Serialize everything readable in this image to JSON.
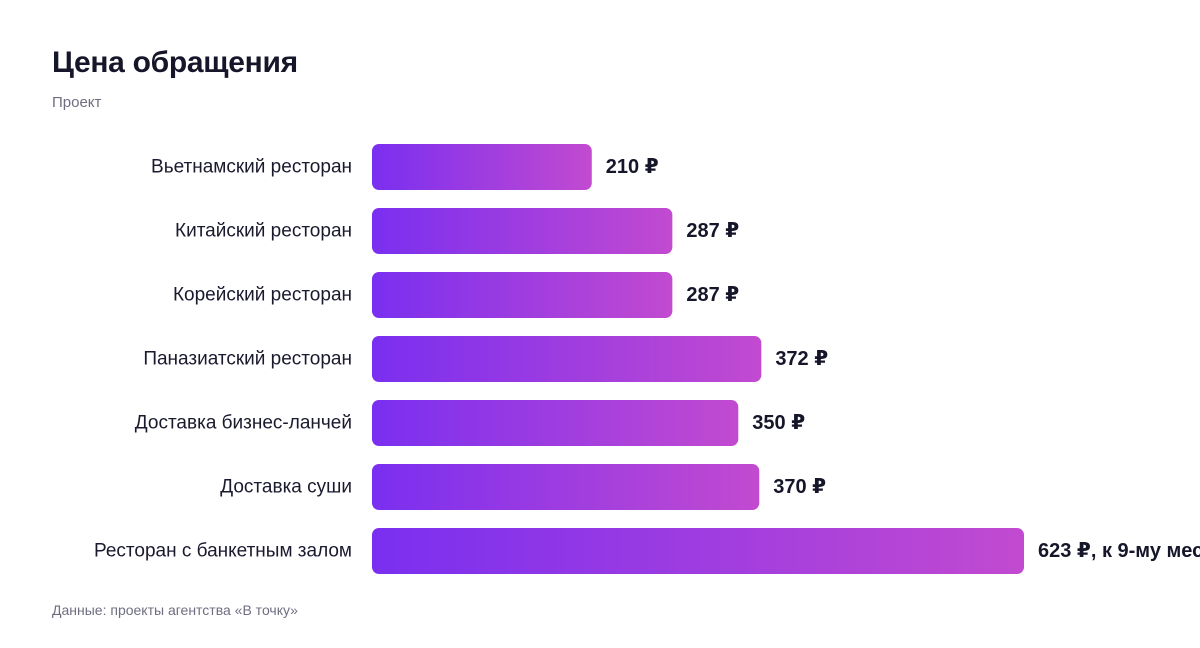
{
  "header": {
    "title": "Цена обращения",
    "subtitle": "Проект"
  },
  "footer": {
    "source": "Данные: проекты агентства «В точку»"
  },
  "colors": {
    "bar_start": "#7a2ff0",
    "bar_end": "#c24ad0",
    "text": "#16162a",
    "muted": "#6e6e80"
  },
  "chart_data": {
    "type": "bar",
    "orientation": "horizontal",
    "title": "Цена обращения",
    "subtitle": "Проект",
    "categories": [
      "Вьетнамский ресторан",
      "Китайский ресторан",
      "Корейский ресторан",
      "Паназиатский ресторан",
      "Доставка бизнес-ланчей",
      "Доставка суши",
      "Ресторан с банкетным залом"
    ],
    "values": [
      210,
      287,
      287,
      372,
      350,
      370,
      623
    ],
    "value_labels": [
      "210 ₽",
      "287 ₽",
      "287 ₽",
      "372 ₽",
      "350 ₽",
      "370 ₽",
      "623 ₽, к 9-му мес"
    ],
    "unit": "₽",
    "grid": false,
    "legend": "none"
  }
}
